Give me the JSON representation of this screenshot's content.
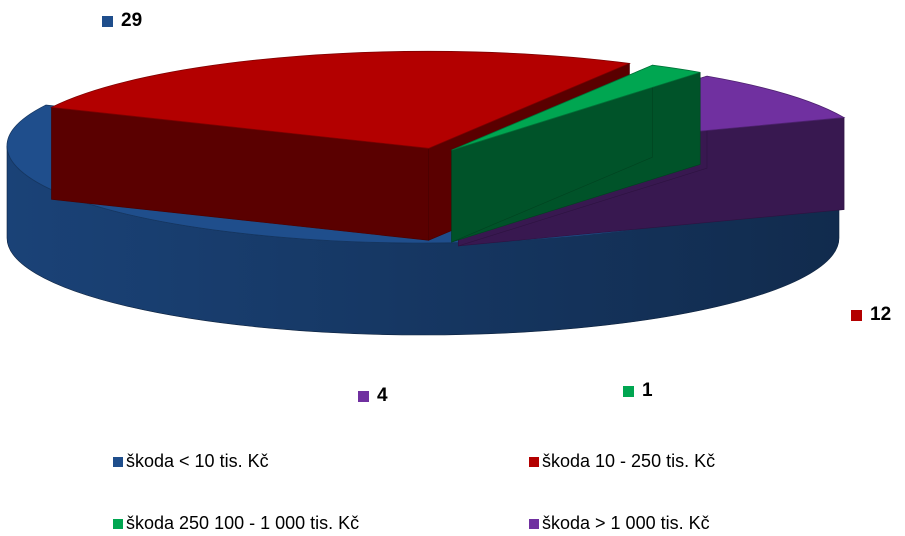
{
  "chart_data": {
    "type": "pie",
    "categories": [
      "škoda < 10 tis. Kč",
      "škoda 10 - 250 tis. Kč",
      "škoda 250 100 - 1 000 tis. Kč",
      "škoda > 1 000 tis. Kč"
    ],
    "values": [
      29,
      12,
      1,
      4
    ],
    "data_labels": [
      "29",
      "12",
      "1",
      "4"
    ],
    "colors": [
      "#1f4e8c",
      "#b30000",
      "#00a651",
      "#7030a0"
    ],
    "style": "3d-exploded",
    "legend_position": "bottom"
  }
}
